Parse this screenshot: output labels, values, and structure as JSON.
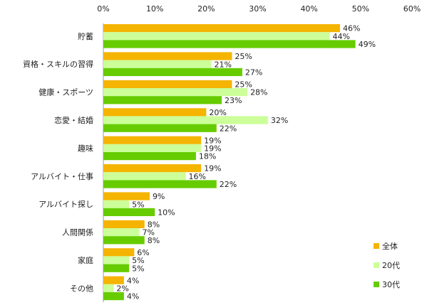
{
  "chart_data": {
    "type": "bar",
    "orientation": "horizontal",
    "categories": [
      "貯蓄",
      "資格・スキルの習得",
      "健康・スポーツ",
      "恋愛・結婚",
      "趣味",
      "アルバイト・仕事",
      "アルバイト探し",
      "人間関係",
      "家庭",
      "その他"
    ],
    "series": [
      {
        "name": "全体",
        "color": "#f5b400",
        "values": [
          46,
          25,
          25,
          20,
          19,
          19,
          9,
          8,
          6,
          4
        ]
      },
      {
        "name": "20代",
        "color": "#ccff99",
        "values": [
          44,
          21,
          28,
          32,
          19,
          16,
          5,
          7,
          5,
          2
        ]
      },
      {
        "name": "30代",
        "color": "#66cc00",
        "values": [
          49,
          27,
          23,
          22,
          18,
          22,
          10,
          8,
          5,
          4
        ]
      }
    ],
    "xlim": [
      0,
      60
    ],
    "xticks": [
      "0%",
      "10%",
      "20%",
      "30%",
      "40%",
      "50%",
      "60%"
    ],
    "value_suffix": "%",
    "axis_position": "top",
    "grid": false,
    "legend_position": "bottom-right"
  }
}
